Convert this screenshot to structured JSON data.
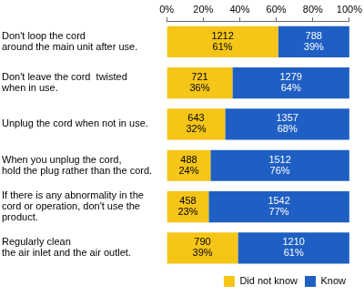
{
  "chart_data": {
    "type": "bar",
    "orientation": "horizontal",
    "stacked": true,
    "data_labels": true,
    "grid": false,
    "legend": "bottom-right",
    "categories": [
      "Don't loop the cord\naround the main unit after use.",
      "Don't leave the cord  twisted\nwhen in use.",
      "Unplug the cord when not in use.",
      "When you unplug the cord,\nhold the plug rather than the cord.",
      "If there is any abnormality in the\ncord or operation, don't use the\nproduct.",
      "Regularly clean\nthe air inlet and the air outlet."
    ],
    "xlim": [
      0,
      100
    ],
    "xticks": [
      {
        "value": 0,
        "label": "0%"
      },
      {
        "value": 20,
        "label": "20%"
      },
      {
        "value": 40,
        "label": "40%"
      },
      {
        "value": 60,
        "label": "60%"
      },
      {
        "value": 80,
        "label": "80%"
      },
      {
        "value": 100,
        "label": "100%"
      }
    ],
    "series": [
      {
        "name": "Did not know",
        "color": "#f5c518",
        "values": [
          61,
          36,
          32,
          24,
          23,
          39
        ],
        "counts": [
          1212,
          721,
          643,
          488,
          458,
          790
        ],
        "value_labels": [
          "61%",
          "36%",
          "32%",
          "24%",
          "23%",
          "39%"
        ]
      },
      {
        "name": "Know",
        "color": "#1f5fc4",
        "values": [
          39,
          64,
          68,
          76,
          77,
          61
        ],
        "counts": [
          788,
          1279,
          1357,
          1512,
          1542,
          1210
        ],
        "value_labels": [
          "39%",
          "64%",
          "68%",
          "76%",
          "77%",
          "61%"
        ]
      }
    ]
  }
}
